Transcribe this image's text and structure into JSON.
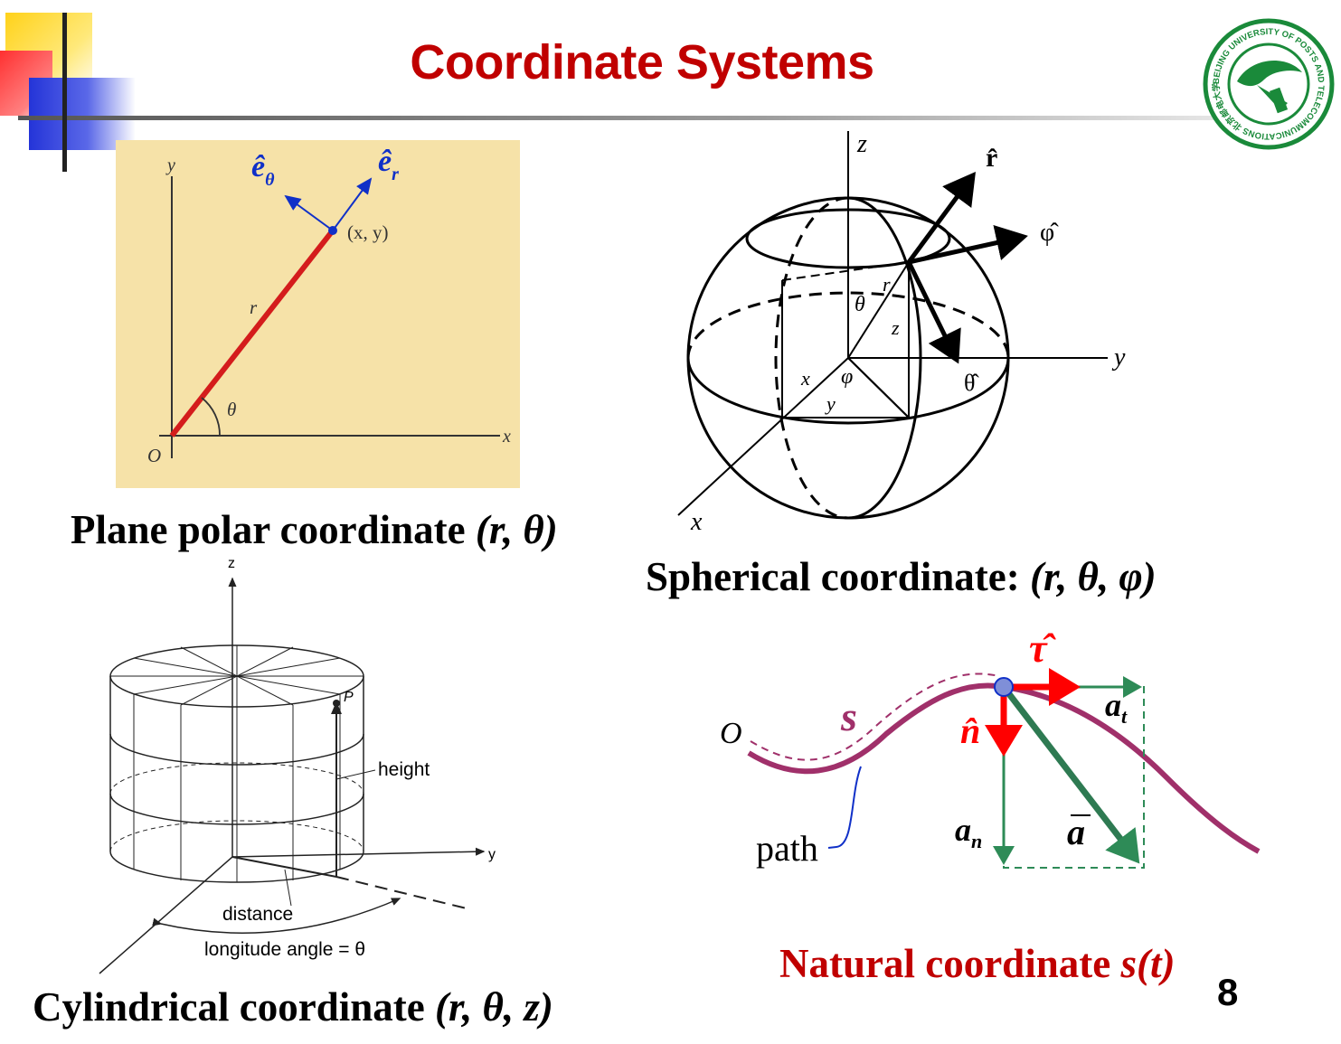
{
  "slide": {
    "title": "Coordinate Systems",
    "page_number": "8",
    "logo_text": "BEIJING UNIVERSITY OF POSTS AND TELECOMMUNICATIONS 北京邮电大学"
  },
  "polar": {
    "caption_text": "Plane polar coordinate",
    "caption_vars": "(r, θ)",
    "labels": {
      "y": "y",
      "x": "x",
      "origin": "O",
      "r": "r",
      "theta": "θ",
      "point": "(x, y)",
      "e_theta": "ê",
      "e_theta_sub": "θ",
      "e_r": "ê",
      "e_r_sub": "r"
    }
  },
  "spherical": {
    "caption_text": "Spherical coordinate:",
    "caption_vars": "(r, θ, φ)",
    "labels": {
      "z": "z",
      "y": "y",
      "x": "x",
      "r_hat": "r̂",
      "phi_hat": "φ̂",
      "theta_hat": "θ̂",
      "r": "r",
      "theta": "θ",
      "z_in": "z",
      "phi": "φ",
      "x_in": "x",
      "y_in": "y"
    }
  },
  "cylindrical": {
    "caption_text": "Cylindrical coordinate",
    "caption_vars": "(r, θ, z)",
    "labels": {
      "z": "z",
      "y": "y",
      "p": "P",
      "height": "height",
      "distance": "distance",
      "longitude": "longitude angle = θ"
    }
  },
  "natural": {
    "caption_text": "Natural coordinate",
    "caption_vars": "s(t)",
    "labels": {
      "origin": "O",
      "s": "s",
      "path": "path",
      "tau": "τ̂",
      "n": "n̂",
      "at": "a",
      "at_sub": "t",
      "an": "a",
      "an_sub": "n",
      "a": "a"
    }
  },
  "colors": {
    "title_red": "#c00000",
    "polar_bg": "#f6e2a8",
    "radial_red": "#d41c1c",
    "vector_blue": "#1030c8",
    "path_purple": "#a0306a",
    "accel_green": "#2e8b57",
    "tangent_red": "#ff0000",
    "logo_green": "#1a8a3a"
  }
}
